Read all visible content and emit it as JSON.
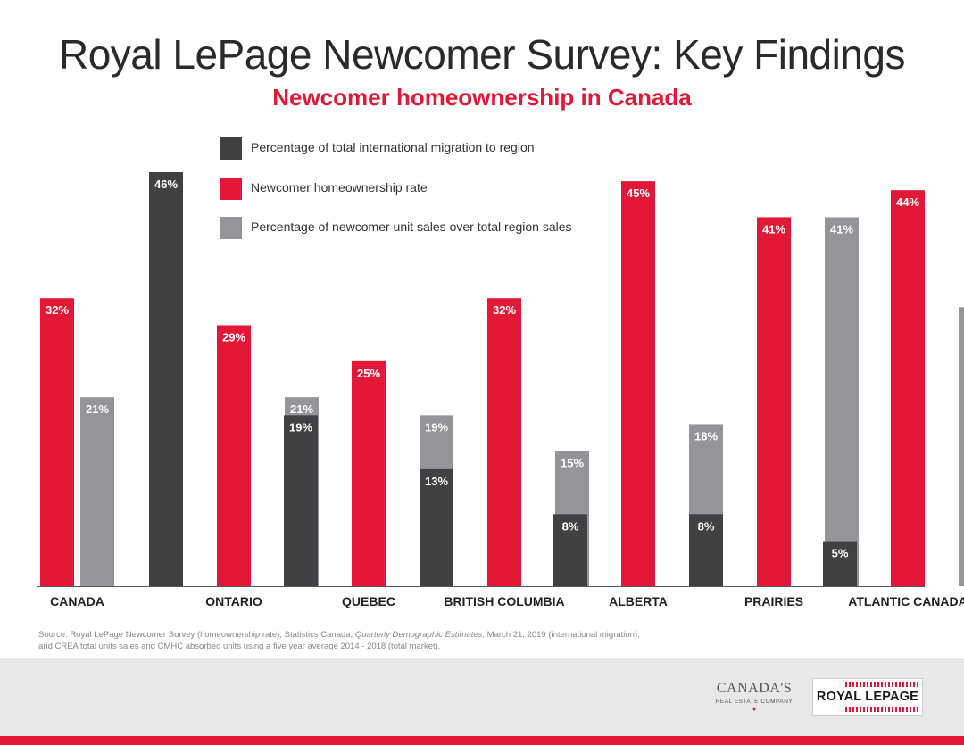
{
  "header": {
    "title": "Royal LePage Newcomer Survey: Key Findings",
    "subtitle": "Newcomer homeownership in Canada"
  },
  "chart_data": {
    "type": "bar",
    "title": "Royal LePage Newcomer Survey: Key Findings",
    "subtitle": "Newcomer homeownership in Canada",
    "xlabel": "",
    "ylabel": "",
    "ylim": [
      0,
      50
    ],
    "grid": false,
    "legend_position": "top-left",
    "categories": [
      "CANADA",
      "ONTARIO",
      "QUEBEC",
      "BRITISH COLUMBIA",
      "ALBERTA",
      "PRAIRIES",
      "ATLANTIC CANADA"
    ],
    "series": [
      {
        "name": "Percentage of total international migration to region",
        "color": "#414042",
        "values": [
          null,
          46,
          19,
          13,
          8,
          8,
          5
        ]
      },
      {
        "name": "Newcomer homeownership rate",
        "color": "#e31837",
        "values": [
          32,
          29,
          25,
          32,
          45,
          41,
          44
        ]
      },
      {
        "name": "Percentage of newcomer unit sales over total region sales",
        "color": "#939598",
        "values": [
          21,
          21,
          19,
          15,
          18,
          41,
          31
        ]
      }
    ],
    "value_suffix": "%"
  },
  "source": {
    "line1_a": "Source: Royal LePage Newcomer Survey (homeownership rate); Statistics Canada, ",
    "line1_italic": "Quarterly Demographic Estimates",
    "line1_b": ", March 21, 2019 (international migration);",
    "line2": "and CREA total units sales and CMHC absorbed units using a five year average 2014 - 2018 (total market)."
  },
  "footer": {
    "cdn_logo": {
      "line1": "CANADA'S",
      "line2": "REAL ESTATE COMPANY",
      "leaf": "icon-maple-leaf"
    },
    "rlp_logo": {
      "text": "ROYAL LEPAGE"
    }
  },
  "colors": {
    "accent": "#e31837",
    "dark": "#414042",
    "gray": "#939598",
    "footer_bg": "#e8e8e8"
  }
}
